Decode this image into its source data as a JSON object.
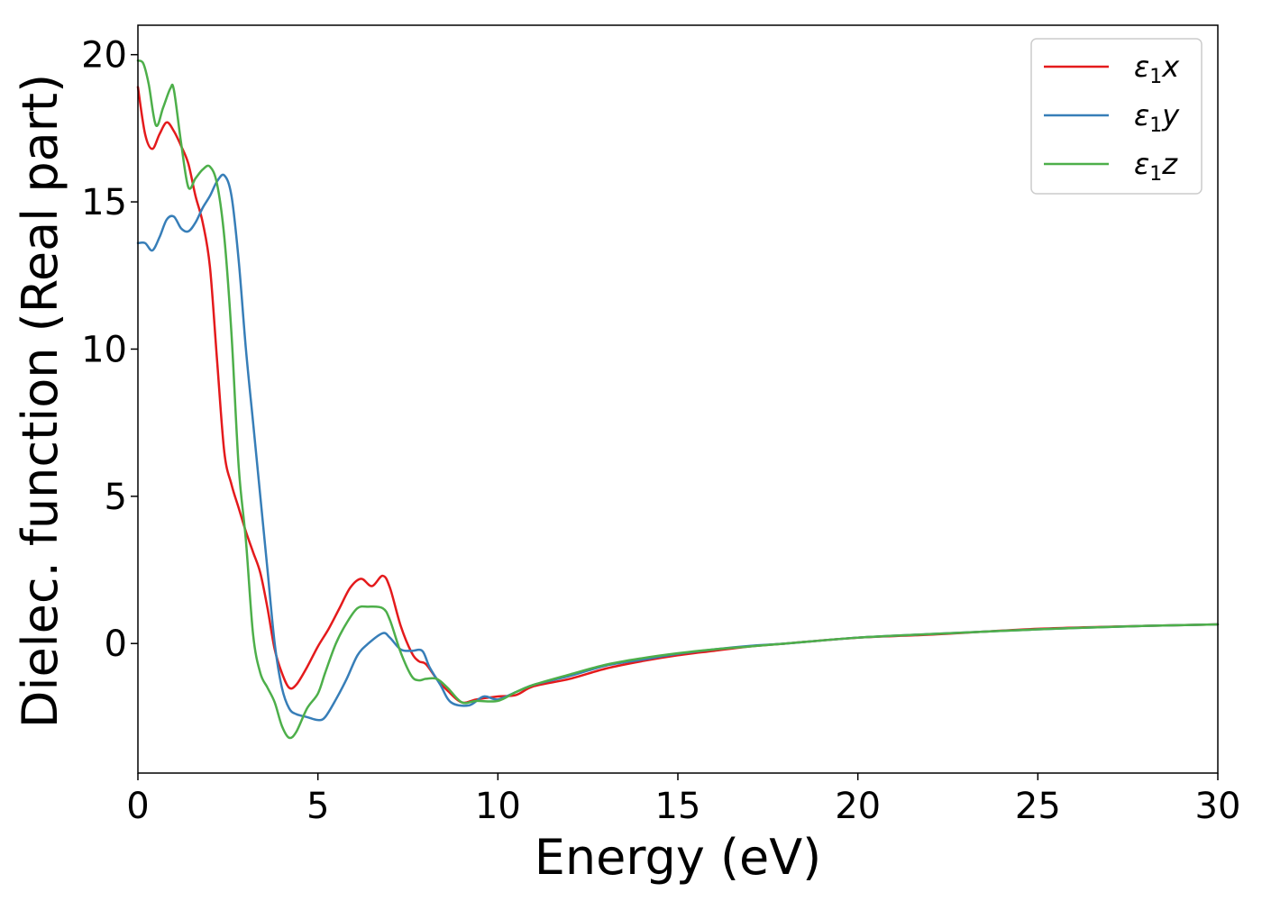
{
  "chart_data": {
    "type": "line",
    "xlabel": "Energy (eV)",
    "ylabel": "Dielec. function (Real part)",
    "xlim": [
      0,
      30
    ],
    "ylim": [
      -4.4,
      21
    ],
    "xticks": [
      0,
      5,
      10,
      15,
      20,
      25,
      30
    ],
    "yticks": [
      0,
      5,
      10,
      15,
      20
    ],
    "xtick_labels": [
      "0",
      "5",
      "10",
      "15",
      "20",
      "25",
      "30"
    ],
    "ytick_labels": [
      "0",
      "5",
      "10",
      "15",
      "20"
    ],
    "grid": false,
    "legend_position": "top-right",
    "series": [
      {
        "name": "ε₁x",
        "legend_main": "ε",
        "legend_sub": "1",
        "legend_var": "x",
        "color": "#e41a1c",
        "x": [
          0,
          0.2,
          0.4,
          0.6,
          0.8,
          1.0,
          1.2,
          1.4,
          1.6,
          1.8,
          2.0,
          2.2,
          2.4,
          2.6,
          2.8,
          3.0,
          3.2,
          3.4,
          3.6,
          3.8,
          4.0,
          4.2,
          4.4,
          4.7,
          5.0,
          5.3,
          5.6,
          5.9,
          6.2,
          6.5,
          6.8,
          7.0,
          7.3,
          7.6,
          7.8,
          8.0,
          8.3,
          8.6,
          9.0,
          9.4,
          10.0,
          10.5,
          11.0,
          12.0,
          13.0,
          14.0,
          15.0,
          16.0,
          17.0,
          18.0,
          20.0,
          22.0,
          25.0,
          28.0,
          30.0
        ],
        "y": [
          18.9,
          17.3,
          16.8,
          17.3,
          17.7,
          17.4,
          16.9,
          16.3,
          15.2,
          14.3,
          12.8,
          9.6,
          6.5,
          5.4,
          4.6,
          3.8,
          3.1,
          2.4,
          1.2,
          -0.2,
          -1.0,
          -1.5,
          -1.4,
          -0.8,
          -0.1,
          0.5,
          1.2,
          1.9,
          2.2,
          1.95,
          2.3,
          1.9,
          0.6,
          -0.3,
          -0.6,
          -0.7,
          -1.2,
          -1.6,
          -2.0,
          -1.9,
          -1.8,
          -1.75,
          -1.45,
          -1.2,
          -0.85,
          -0.6,
          -0.4,
          -0.25,
          -0.1,
          0.0,
          0.2,
          0.3,
          0.5,
          0.6,
          0.65
        ]
      },
      {
        "name": "ε₁y",
        "legend_main": "ε",
        "legend_sub": "1",
        "legend_var": "y",
        "color": "#377eb8",
        "x": [
          0,
          0.2,
          0.4,
          0.6,
          0.8,
          1.0,
          1.2,
          1.4,
          1.6,
          1.8,
          2.0,
          2.2,
          2.4,
          2.6,
          2.8,
          3.0,
          3.2,
          3.4,
          3.6,
          3.8,
          4.0,
          4.2,
          4.4,
          4.7,
          5.0,
          5.2,
          5.5,
          5.8,
          6.1,
          6.4,
          6.8,
          7.0,
          7.3,
          7.6,
          7.9,
          8.1,
          8.4,
          8.7,
          9.2,
          9.6,
          10.0,
          10.5,
          11.0,
          12.0,
          13.0,
          14.0,
          15.0,
          16.0,
          17.0,
          18.0,
          20.0,
          22.0,
          25.0,
          28.0,
          30.0
        ],
        "y": [
          13.6,
          13.6,
          13.35,
          13.8,
          14.4,
          14.5,
          14.1,
          14.0,
          14.3,
          14.8,
          15.2,
          15.7,
          15.9,
          15.2,
          13.0,
          10.0,
          7.5,
          5.0,
          2.5,
          0.0,
          -1.5,
          -2.2,
          -2.4,
          -2.5,
          -2.6,
          -2.5,
          -1.9,
          -1.2,
          -0.4,
          0.0,
          0.35,
          0.2,
          -0.2,
          -0.25,
          -0.25,
          -0.8,
          -1.4,
          -2.0,
          -2.1,
          -1.8,
          -1.9,
          -1.65,
          -1.4,
          -1.1,
          -0.75,
          -0.55,
          -0.35,
          -0.2,
          -0.08,
          0.0,
          0.2,
          0.32,
          0.48,
          0.6,
          0.65
        ]
      },
      {
        "name": "ε₁z",
        "legend_main": "ε",
        "legend_sub": "1",
        "legend_var": "z",
        "color": "#4daf4a",
        "x": [
          0,
          0.15,
          0.3,
          0.5,
          0.7,
          0.9,
          1.0,
          1.2,
          1.4,
          1.6,
          1.8,
          2.0,
          2.2,
          2.4,
          2.6,
          2.8,
          3.0,
          3.2,
          3.4,
          3.6,
          3.8,
          4.0,
          4.2,
          4.4,
          4.7,
          5.0,
          5.2,
          5.5,
          5.8,
          6.1,
          6.4,
          6.8,
          7.0,
          7.3,
          7.6,
          7.8,
          8.0,
          8.3,
          8.6,
          9.0,
          9.4,
          10.0,
          10.5,
          11.0,
          12.0,
          13.0,
          14.0,
          15.0,
          16.0,
          17.0,
          18.0,
          20.0,
          22.0,
          25.0,
          28.0,
          30.0
        ],
        "y": [
          19.8,
          19.7,
          19.0,
          17.6,
          18.2,
          18.85,
          18.8,
          17.0,
          15.5,
          15.8,
          16.1,
          16.2,
          15.6,
          13.8,
          10.5,
          6.0,
          3.5,
          0.3,
          -1.0,
          -1.5,
          -2.0,
          -2.8,
          -3.2,
          -3.0,
          -2.2,
          -1.7,
          -1.0,
          0.0,
          0.7,
          1.2,
          1.25,
          1.2,
          0.8,
          -0.3,
          -1.1,
          -1.25,
          -1.2,
          -1.2,
          -1.5,
          -2.0,
          -1.95,
          -1.95,
          -1.65,
          -1.4,
          -1.05,
          -0.72,
          -0.5,
          -0.33,
          -0.2,
          -0.1,
          0.0,
          0.2,
          0.32,
          0.48,
          0.6,
          0.65
        ]
      }
    ]
  }
}
